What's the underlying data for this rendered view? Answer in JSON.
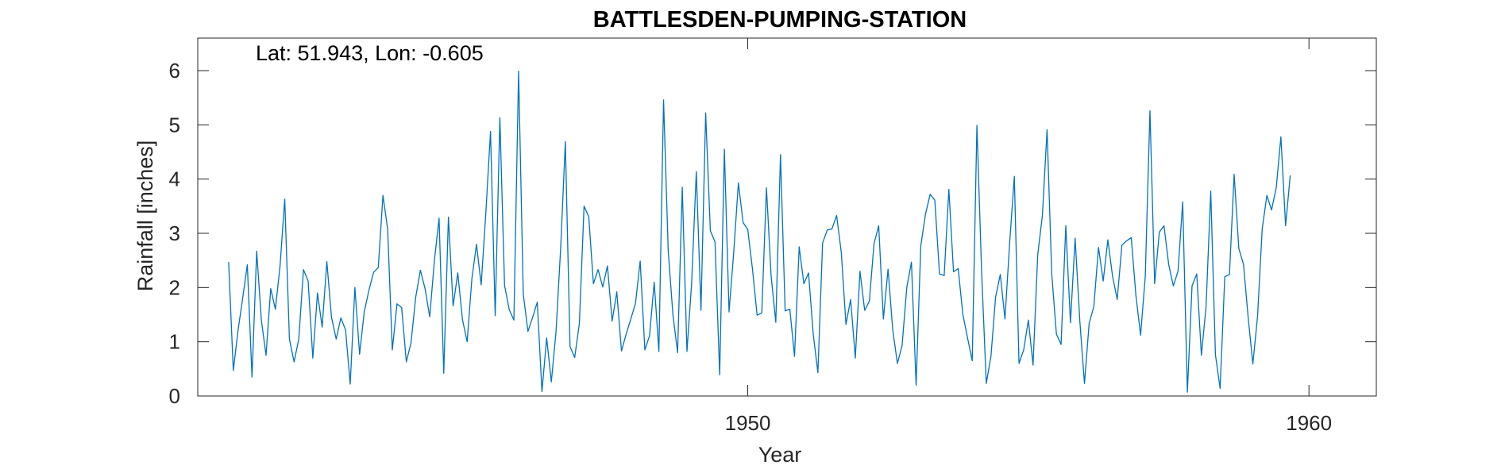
{
  "chart_data": {
    "type": "line",
    "title": "BATTLESDEN-PUMPING-STATION",
    "annotation": "Lat: 51.943, Lon: -0.605",
    "xlabel": "Year",
    "ylabel": "Rainfall [inches]",
    "xlim": [
      1940.2,
      1961.2
    ],
    "ylim": [
      0,
      6.6
    ],
    "xticks": [
      1950,
      1960
    ],
    "xtick_labels": [
      "1950",
      "1960"
    ],
    "yticks": [
      0,
      1,
      2,
      3,
      4,
      5,
      6
    ],
    "ytick_labels": [
      "0",
      "1",
      "2",
      "3",
      "4",
      "5",
      "6"
    ],
    "grid": false,
    "line_color": "#0072BD",
    "series": [
      {
        "x_start": 1940.75,
        "x_step": 0.0833333,
        "values": [
          2.47,
          0.47,
          1.2,
          1.8,
          2.42,
          0.35,
          2.67,
          1.4,
          0.75,
          1.98,
          1.6,
          2.4,
          3.63,
          1.05,
          0.63,
          1.05,
          2.33,
          2.12,
          0.7,
          1.9,
          1.27,
          2.48,
          1.45,
          1.05,
          1.44,
          1.22,
          0.22,
          2.0,
          0.77,
          1.55,
          1.95,
          2.28,
          2.37,
          3.7,
          3.08,
          0.85,
          1.7,
          1.63,
          0.63,
          0.98,
          1.82,
          2.32,
          1.98,
          1.46,
          2.5,
          3.28,
          0.42,
          3.3,
          1.66,
          2.27,
          1.41,
          1.0,
          2.15,
          2.8,
          2.05,
          3.38,
          4.88,
          1.48,
          5.13,
          2.04,
          1.59,
          1.4,
          5.99,
          1.88,
          1.19,
          1.45,
          1.73,
          0.08,
          1.07,
          0.26,
          1.18,
          2.73,
          4.69,
          0.91,
          0.71,
          1.34,
          3.5,
          3.31,
          2.07,
          2.33,
          2.01,
          2.4,
          1.38,
          1.92,
          0.83,
          1.14,
          1.42,
          1.71,
          2.49,
          0.85,
          1.11,
          2.1,
          0.82,
          5.46,
          2.67,
          1.5,
          0.8,
          3.85,
          0.82,
          2.08,
          4.14,
          1.58,
          5.22,
          3.05,
          2.84,
          0.39,
          4.55,
          1.55,
          2.65,
          3.93,
          3.2,
          3.07,
          2.35,
          1.49,
          1.53,
          3.84,
          2.21,
          1.36,
          4.45,
          1.57,
          1.6,
          0.73,
          2.75,
          2.07,
          2.27,
          1.14,
          0.43,
          2.82,
          3.06,
          3.08,
          3.33,
          2.65,
          1.32,
          1.78,
          0.7,
          2.3,
          1.58,
          1.75,
          2.81,
          3.14,
          1.42,
          2.34,
          1.22,
          0.6,
          0.93,
          2.0,
          2.47,
          0.2,
          2.77,
          3.35,
          3.72,
          3.61,
          2.25,
          2.22,
          3.81,
          2.29,
          2.35,
          1.5,
          1.07,
          0.65,
          4.99,
          2.3,
          0.23,
          0.73,
          1.83,
          2.24,
          1.42,
          2.82,
          4.05,
          0.6,
          0.85,
          1.4,
          0.57,
          2.6,
          3.33,
          4.91,
          2.25,
          1.14,
          0.95,
          3.14,
          1.35,
          2.91,
          1.39,
          0.23,
          1.34,
          1.65,
          2.74,
          2.12,
          2.88,
          2.21,
          1.78,
          2.78,
          2.86,
          2.92,
          1.85,
          1.12,
          2.21,
          5.26,
          2.07,
          3.02,
          3.14,
          2.43,
          2.03,
          2.3,
          3.58,
          0.07,
          2.03,
          2.25,
          0.75,
          1.65,
          3.78,
          0.76,
          0.14,
          2.2,
          2.24,
          4.09,
          2.72,
          2.43,
          1.45,
          0.59,
          1.46,
          3.08,
          3.7,
          3.43,
          3.84,
          4.78,
          3.14,
          4.07
        ]
      }
    ]
  }
}
